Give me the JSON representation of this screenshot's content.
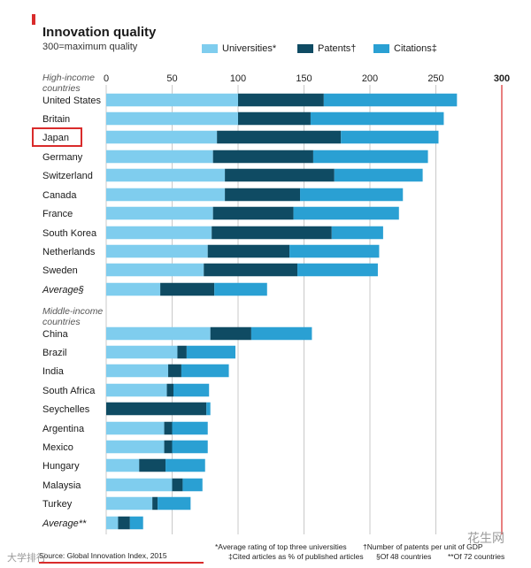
{
  "header": {
    "title": "Innovation quality",
    "subtitle": "300=maximum quality"
  },
  "legend": [
    {
      "label": "Universities*",
      "color": "#7fcdee"
    },
    {
      "label": "Patents†",
      "color": "#0f4b63"
    },
    {
      "label": "Citations‡",
      "color": "#2aa0d3"
    }
  ],
  "groups": {
    "high": "High-income countries",
    "middle": "Middle-income countries"
  },
  "footer": {
    "source": "Source: Global Innovation Index, 2015",
    "note1": "*Average rating of top three universities",
    "note2": "‡Cited articles as % of published articles",
    "note3": "†Number of patents per unit of GDP",
    "note4": "§Of 48 countries",
    "note5": "**Of 72 countries"
  },
  "watermarks": {
    "left": "大学排行",
    "right": "花生网"
  },
  "chart_data": {
    "type": "bar",
    "orientation": "horizontal",
    "stacked": true,
    "xlim": [
      0,
      300
    ],
    "xticks": [
      0,
      50,
      100,
      150,
      200,
      250,
      300
    ],
    "highlight": "Japan",
    "categories": [
      "United States",
      "Britain",
      "Japan",
      "Germany",
      "Switzerland",
      "Canada",
      "France",
      "South Korea",
      "Netherlands",
      "Sweden",
      "Average§",
      "China",
      "Brazil",
      "India",
      "South Africa",
      "Seychelles",
      "Argentina",
      "Mexico",
      "Hungary",
      "Malaysia",
      "Turkey",
      "Average**"
    ],
    "italic_categories": [
      "Average§",
      "Average**"
    ],
    "series": [
      {
        "name": "Universities*",
        "color": "#7fcdee",
        "values": [
          100,
          100,
          84,
          81,
          90,
          90,
          81,
          80,
          77,
          74,
          41,
          79,
          54,
          47,
          46,
          0,
          44,
          44,
          25,
          50,
          35,
          9
        ]
      },
      {
        "name": "Patents†",
        "color": "#0f4b63",
        "values": [
          65,
          55,
          94,
          76,
          83,
          57,
          61,
          91,
          62,
          71,
          41,
          31,
          7,
          10,
          5,
          76,
          6,
          6,
          20,
          8,
          4,
          9
        ]
      },
      {
        "name": "Citations‡",
        "color": "#2aa0d3",
        "values": [
          101,
          101,
          74,
          87,
          67,
          78,
          80,
          39,
          68,
          61,
          40,
          46,
          37,
          36,
          27,
          3,
          27,
          27,
          30,
          15,
          25,
          10
        ]
      }
    ]
  }
}
